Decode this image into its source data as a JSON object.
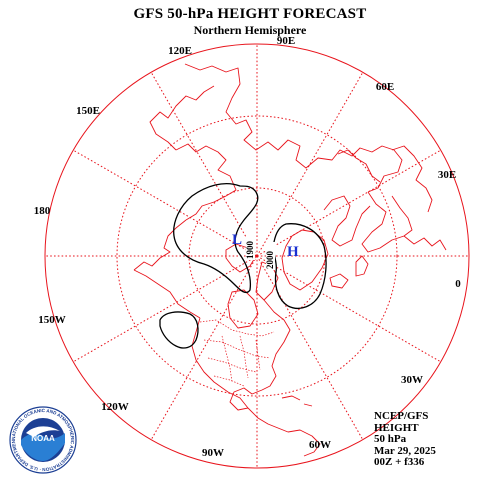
{
  "header": {
    "title": "GFS 50-hPa HEIGHT FORECAST",
    "subtitle": "Northern Hemisphere"
  },
  "longitude_labels": [
    "90E",
    "60E",
    "30E",
    "0",
    "30W",
    "60W",
    "90W",
    "120W",
    "150W",
    "180",
    "150E",
    "120E"
  ],
  "pressure_centers": {
    "low": "L",
    "high": "H"
  },
  "contour_labels": [
    "1900",
    "2000"
  ],
  "info": {
    "source": "NCEP/GFS",
    "field": "HEIGHT",
    "level": "50 hPa",
    "date": "Mar 29, 2025",
    "run": "00Z + f336"
  },
  "logo": {
    "text": "NATIONAL OCEANIC AND ATMOSPHERIC ADMINISTRATION · U.S. DEPARTMENT OF COMMERCE ·",
    "acronym": "NOAA"
  },
  "colors": {
    "map_lines": "#e8141c",
    "contours": "#000000",
    "center_labels": "#1a2fd0"
  }
}
